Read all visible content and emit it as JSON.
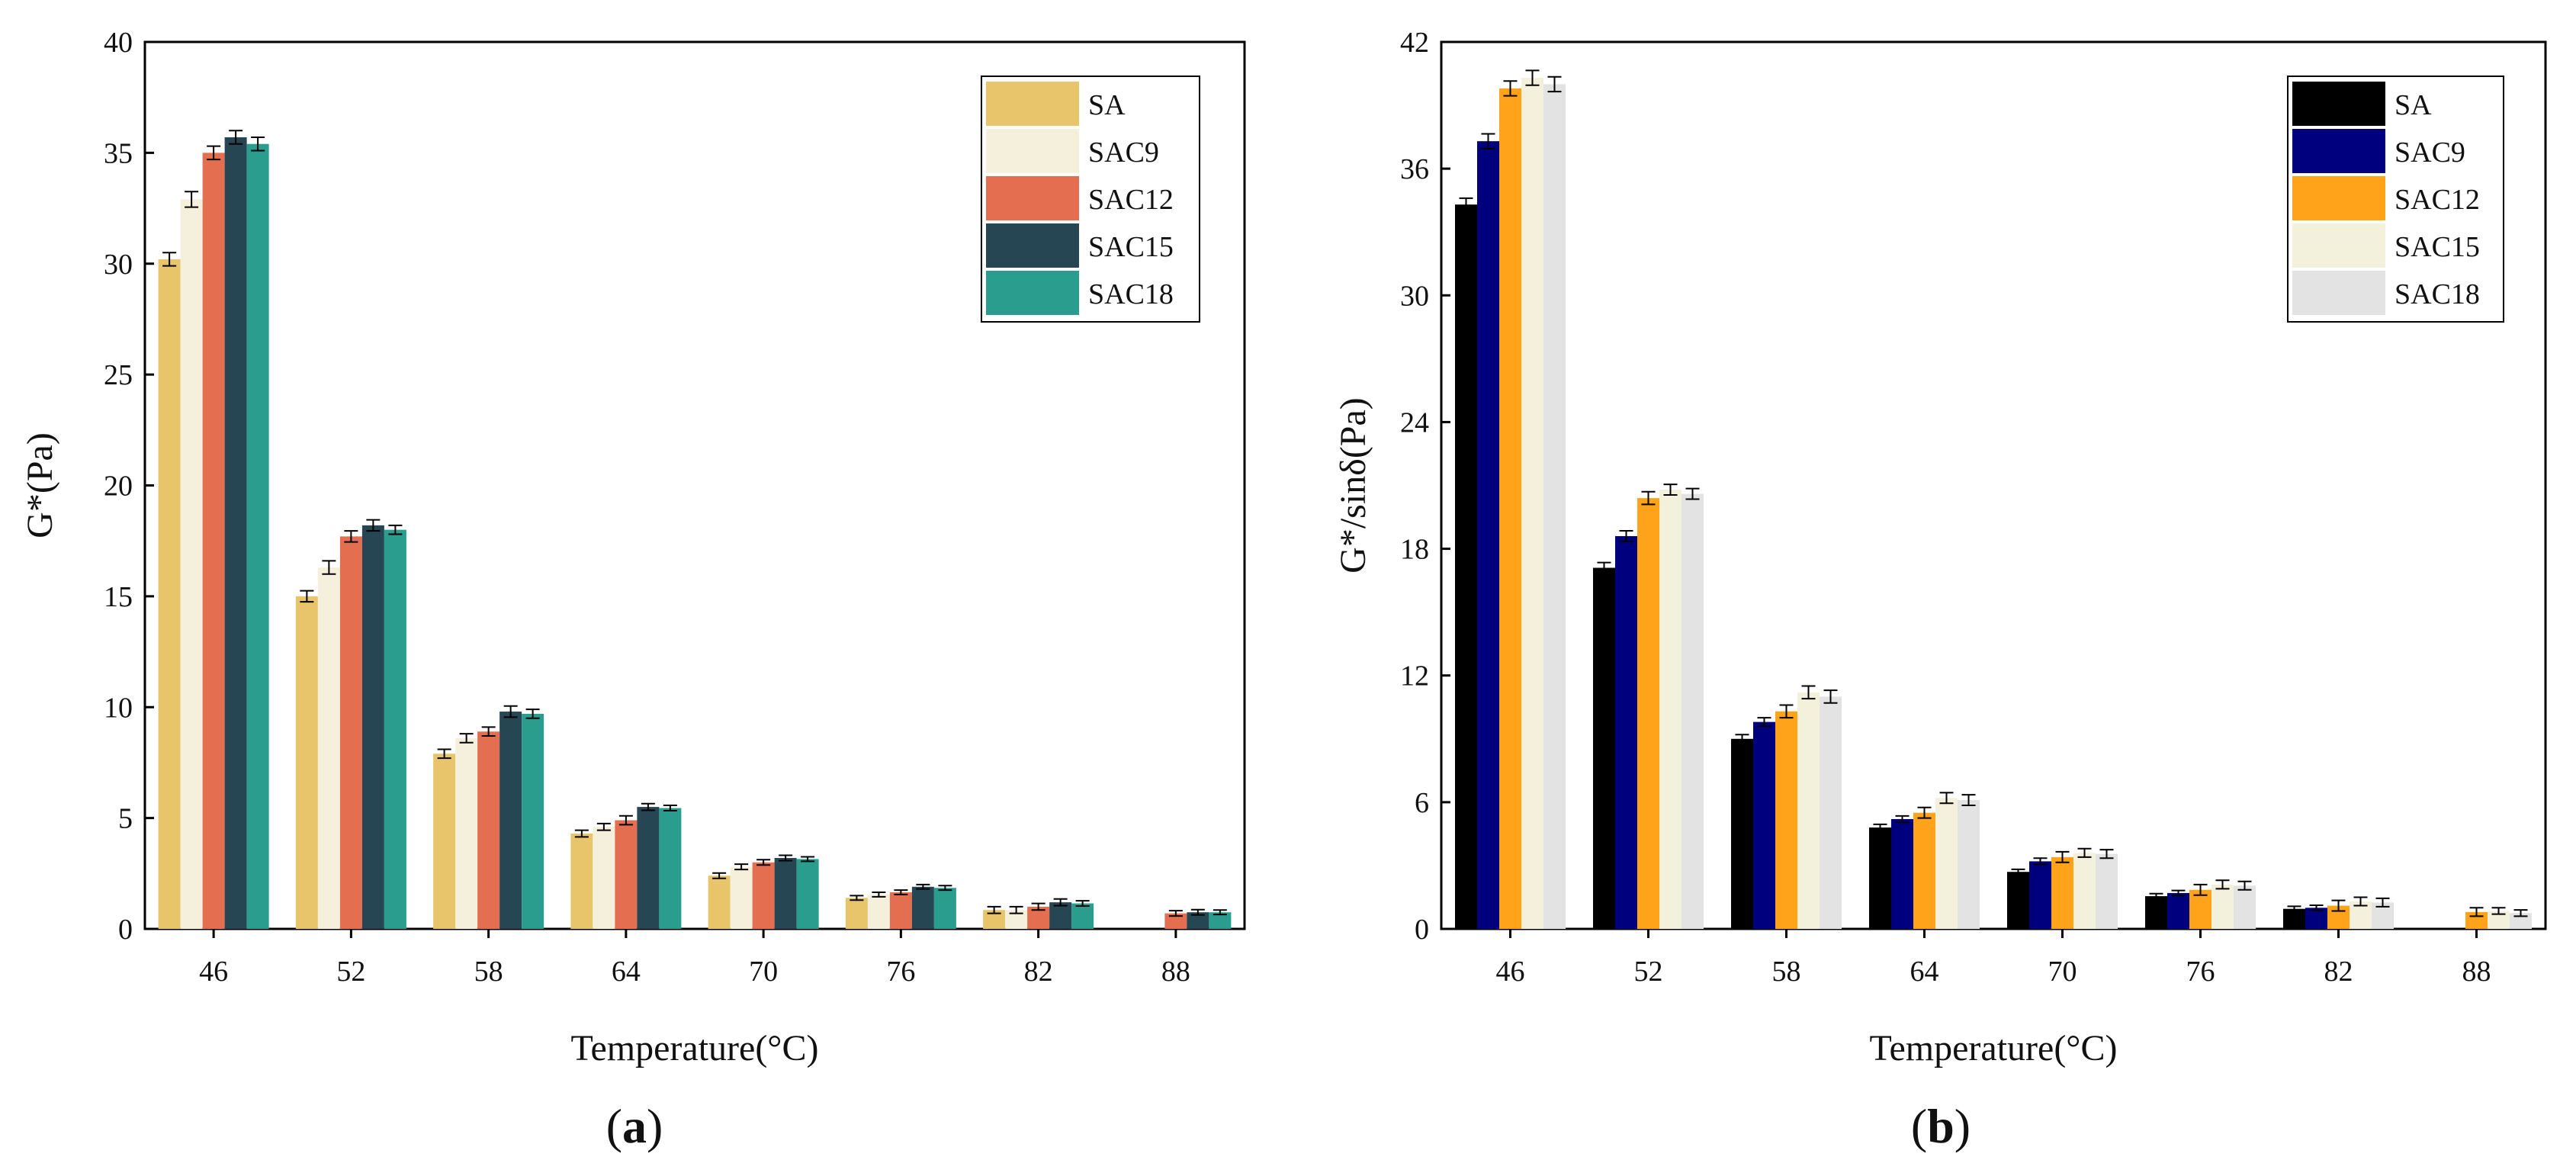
{
  "figure": {
    "panels": [
      {
        "id": "a",
        "open": "(",
        "letter": "a",
        "close": ")"
      },
      {
        "id": "b",
        "open": "(",
        "letter": "b",
        "close": ")"
      }
    ]
  },
  "chart_data": [
    {
      "type": "bar",
      "panel": "(a)",
      "title": "",
      "xlabel": "Temperature(°C)",
      "ylabel": "G*(Pa)",
      "ylim": [
        0,
        40
      ],
      "yticks": [
        0,
        5,
        10,
        15,
        20,
        25,
        30,
        35,
        40
      ],
      "categories": [
        "46",
        "52",
        "58",
        "64",
        "70",
        "76",
        "82",
        "88"
      ],
      "legend_position": "top-right",
      "series": [
        {
          "name": "SA",
          "color": "#E8C46A",
          "values": [
            30.2,
            15.0,
            7.9,
            4.3,
            2.4,
            1.4,
            0.85,
            null
          ],
          "errors": [
            0.3,
            0.25,
            0.2,
            0.15,
            0.12,
            0.1,
            0.15,
            null
          ]
        },
        {
          "name": "SAC9",
          "color": "#F5F0DC",
          "values": [
            32.9,
            16.3,
            8.6,
            4.6,
            2.8,
            1.55,
            0.85,
            null
          ],
          "errors": [
            0.35,
            0.3,
            0.2,
            0.15,
            0.12,
            0.1,
            0.15,
            null
          ]
        },
        {
          "name": "SAC12",
          "color": "#E46F50",
          "values": [
            35.0,
            17.7,
            8.9,
            4.9,
            3.0,
            1.65,
            1.0,
            0.7
          ],
          "errors": [
            0.3,
            0.25,
            0.2,
            0.2,
            0.12,
            0.1,
            0.15,
            0.12
          ]
        },
        {
          "name": "SAC15",
          "color": "#264653",
          "values": [
            35.7,
            18.2,
            9.8,
            5.5,
            3.2,
            1.9,
            1.2,
            0.75
          ],
          "errors": [
            0.3,
            0.25,
            0.25,
            0.15,
            0.12,
            0.1,
            0.15,
            0.12
          ]
        },
        {
          "name": "SAC18",
          "color": "#2A9D8F",
          "values": [
            35.4,
            18.0,
            9.7,
            5.45,
            3.15,
            1.85,
            1.15,
            0.75
          ],
          "errors": [
            0.3,
            0.2,
            0.2,
            0.12,
            0.1,
            0.1,
            0.12,
            0.1
          ]
        }
      ]
    },
    {
      "type": "bar",
      "panel": "(b)",
      "title": "",
      "xlabel": "Temperature(°C)",
      "ylabel": "G*/sinδ(Pa)",
      "ylim": [
        0,
        42
      ],
      "yticks": [
        0,
        6,
        12,
        18,
        24,
        30,
        36,
        42
      ],
      "categories": [
        "46",
        "52",
        "58",
        "64",
        "70",
        "76",
        "82",
        "88"
      ],
      "legend_position": "top-right",
      "series": [
        {
          "name": "SA",
          "color": "#000000",
          "values": [
            34.3,
            17.1,
            9.0,
            4.8,
            2.7,
            1.55,
            0.95,
            null
          ],
          "errors": [
            0.3,
            0.25,
            0.2,
            0.15,
            0.12,
            0.12,
            0.12,
            null
          ]
        },
        {
          "name": "SAC9",
          "color": "#00007F",
          "values": [
            37.3,
            18.6,
            9.8,
            5.2,
            3.2,
            1.7,
            1.0,
            null
          ],
          "errors": [
            0.35,
            0.25,
            0.2,
            0.15,
            0.15,
            0.12,
            0.12,
            null
          ]
        },
        {
          "name": "SAC12",
          "color": "#FFA31A",
          "values": [
            39.8,
            20.4,
            10.3,
            5.5,
            3.4,
            1.85,
            1.1,
            0.8
          ],
          "errors": [
            0.35,
            0.3,
            0.3,
            0.25,
            0.25,
            0.25,
            0.25,
            0.2
          ]
        },
        {
          "name": "SAC15",
          "color": "#F3F0DC",
          "values": [
            40.3,
            20.8,
            11.2,
            6.2,
            3.6,
            2.1,
            1.3,
            0.85
          ],
          "errors": [
            0.35,
            0.25,
            0.3,
            0.25,
            0.2,
            0.2,
            0.2,
            0.15
          ]
        },
        {
          "name": "SAC18",
          "color": "#E3E3E3",
          "values": [
            40.0,
            20.6,
            11.0,
            6.1,
            3.55,
            2.05,
            1.25,
            0.75
          ],
          "errors": [
            0.35,
            0.25,
            0.3,
            0.25,
            0.2,
            0.2,
            0.2,
            0.15
          ]
        }
      ]
    }
  ]
}
